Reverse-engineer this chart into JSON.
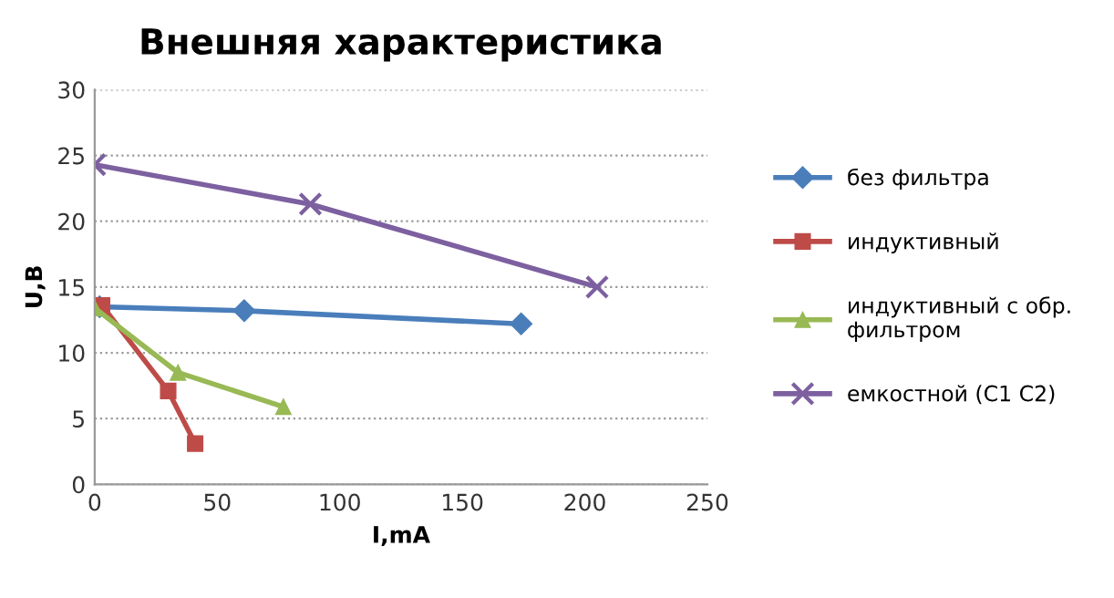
{
  "chart_data": {
    "type": "line",
    "title": "Внешняя характеристика",
    "xlabel": "I,mA",
    "ylabel": "U,B",
    "xlim": [
      0,
      250
    ],
    "xticks": [
      0,
      50,
      100,
      150,
      200,
      250
    ],
    "ylim": [
      0,
      30
    ],
    "yticks": [
      0,
      5,
      10,
      15,
      20,
      25,
      30
    ],
    "grid": "y",
    "legend": "right",
    "series": [
      {
        "name": "без фильтра",
        "color": "#4a7ebb",
        "marker": "diamond",
        "x": [
          2,
          61,
          174
        ],
        "values": [
          13.5,
          13.2,
          12.2
        ]
      },
      {
        "name": "индуктивный",
        "color": "#be4b48",
        "marker": "square",
        "x": [
          3,
          30,
          41
        ],
        "values": [
          13.6,
          7.1,
          3.1
        ]
      },
      {
        "name": "индуктивный с обр. фильтром",
        "color": "#98b954",
        "marker": "triangle",
        "x": [
          0,
          34,
          77
        ],
        "values": [
          13.4,
          8.5,
          5.9
        ]
      },
      {
        "name": "емкостной (С1 С2)",
        "color": "#7d60a0",
        "marker": "cross",
        "x": [
          0,
          88,
          205
        ],
        "values": [
          24.3,
          21.3,
          15
        ]
      }
    ]
  }
}
